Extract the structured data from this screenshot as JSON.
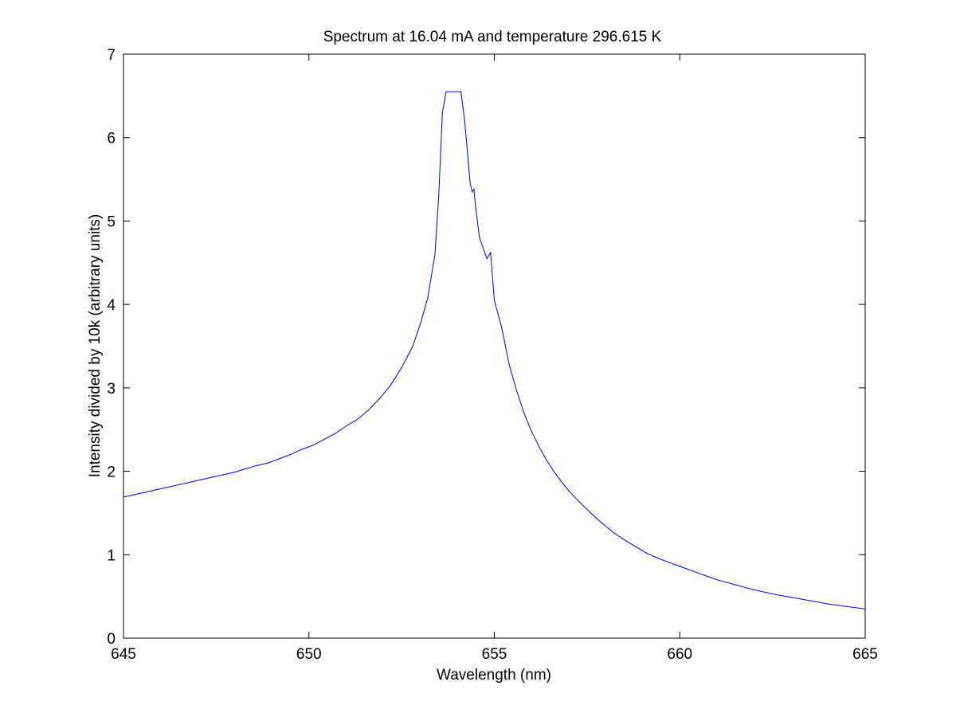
{
  "chart_data": {
    "type": "line",
    "title": "Spectrum at 16.04 mA and temperature 296.615 K",
    "xlabel": "Wavelength (nm)",
    "ylabel": "Intensity divided by 10k (arbitrary units)",
    "xlim": [
      645,
      665
    ],
    "ylim": [
      0,
      7
    ],
    "xticks": [
      645,
      650,
      655,
      660,
      665
    ],
    "yticks": [
      0,
      1,
      2,
      3,
      4,
      5,
      6,
      7
    ],
    "xtick_labels": [
      "645",
      "650",
      "655",
      "660",
      "665"
    ],
    "ytick_labels": [
      "0",
      "1",
      "2",
      "3",
      "4",
      "5",
      "6",
      "7"
    ],
    "grid": false,
    "colors": {
      "line": "#0000ff",
      "axes": "#000000",
      "background": "#ffffff"
    },
    "series": [
      {
        "x": [
          645.0,
          645.3,
          645.6,
          645.9,
          646.2,
          646.5,
          646.8,
          647.1,
          647.4,
          647.7,
          648.0,
          648.3,
          648.6,
          648.9,
          649.2,
          649.5,
          649.8,
          650.1,
          650.4,
          650.7,
          651.0,
          651.3,
          651.6,
          651.9,
          652.2,
          652.5,
          652.8,
          653.0,
          653.2,
          653.4,
          653.5,
          653.55,
          653.6,
          653.7,
          654.1,
          654.2,
          654.3,
          654.35,
          654.4,
          654.45,
          654.5,
          654.6,
          654.8,
          654.9,
          655.0,
          655.2,
          655.4,
          655.6,
          655.8,
          656.0,
          656.2,
          656.4,
          656.6,
          656.8,
          657.0,
          657.3,
          657.6,
          657.9,
          658.2,
          658.5,
          658.8,
          659.1,
          659.4,
          659.7,
          660.0,
          660.5,
          661.0,
          661.5,
          662.0,
          662.5,
          663.0,
          663.5,
          664.0,
          664.5,
          665.0
        ],
        "y": [
          1.69,
          1.72,
          1.75,
          1.78,
          1.81,
          1.84,
          1.87,
          1.9,
          1.93,
          1.96,
          1.99,
          2.03,
          2.07,
          2.1,
          2.15,
          2.2,
          2.26,
          2.31,
          2.38,
          2.45,
          2.54,
          2.62,
          2.73,
          2.87,
          3.03,
          3.24,
          3.5,
          3.76,
          4.07,
          4.6,
          5.3,
          5.8,
          6.3,
          6.55,
          6.55,
          6.2,
          5.7,
          5.45,
          5.35,
          5.38,
          5.15,
          4.8,
          4.55,
          4.62,
          4.05,
          3.72,
          3.28,
          2.97,
          2.7,
          2.48,
          2.3,
          2.14,
          2.0,
          1.88,
          1.77,
          1.63,
          1.5,
          1.38,
          1.27,
          1.18,
          1.1,
          1.02,
          0.96,
          0.91,
          0.86,
          0.78,
          0.7,
          0.64,
          0.58,
          0.53,
          0.49,
          0.45,
          0.41,
          0.38,
          0.35
        ]
      }
    ]
  }
}
